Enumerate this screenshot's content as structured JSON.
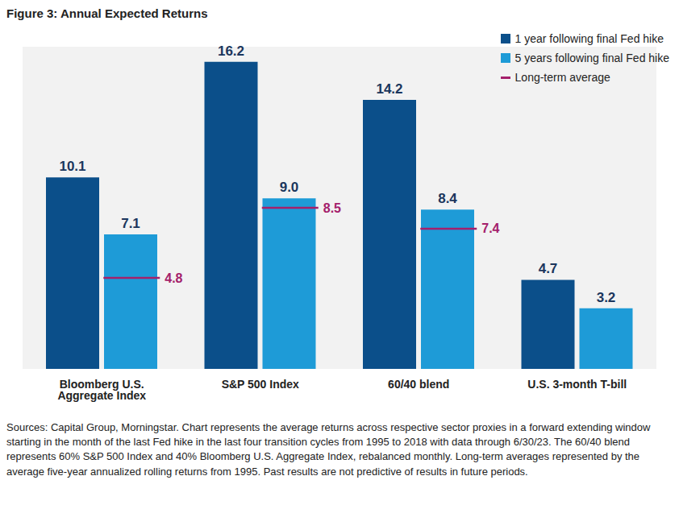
{
  "chart_data": {
    "type": "bar",
    "title": "Figure 3: Annual Expected Returns",
    "categories": [
      "Bloomberg U.S. Aggregate Index",
      "S&P 500 Index",
      "60/40 blend",
      "U.S. 3-month T-bill"
    ],
    "series": [
      {
        "name": "1 year following final Fed hike",
        "color": "#0b4f8a",
        "values": [
          10.1,
          16.2,
          14.2,
          4.7
        ],
        "value_labels": [
          "10.1",
          "16.2",
          "14.2",
          "4.7"
        ]
      },
      {
        "name": "5 years following final Fed hike",
        "color": "#1e9bd7",
        "values": [
          7.1,
          9.0,
          8.4,
          3.2
        ],
        "value_labels": [
          "7.1",
          "9.0",
          "8.4",
          "3.2"
        ]
      },
      {
        "name": "Long-term average",
        "type": "marker",
        "color": "#a4206b",
        "values": [
          4.8,
          8.5,
          7.4,
          null
        ],
        "value_labels": [
          "4.8",
          "8.5",
          "7.4",
          null
        ]
      }
    ],
    "ylim": [
      0,
      17
    ],
    "tick_labels": "x",
    "data_labels": true,
    "legend": "upper right",
    "note": "Sources: Capital Group, Morningstar. Chart represents the average returns across respective sector proxies in a forward extending window starting in the month of the last Fed hike in the last four transition cycles from 1995 to 2018 with data through 6/30/23. The 60/40 blend represents 60% S&P 500 Index and 40% Bloomberg U.S. Aggregate Index, rebalanced monthly. Long-term averages represented by the average five-year annualized rolling returns from 1995. Past results are not predictive of results in future periods."
  }
}
